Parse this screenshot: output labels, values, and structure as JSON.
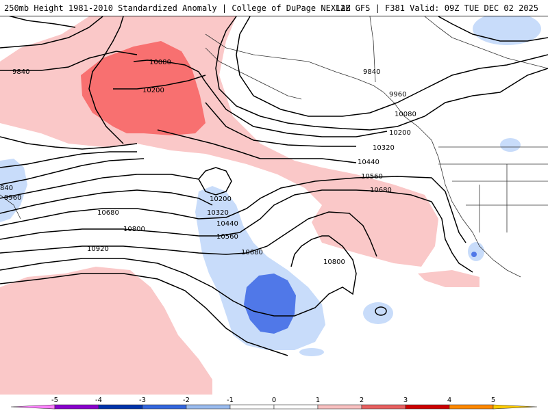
{
  "header": {
    "left_title": "250mb Height 1981-2010 Standardized Anomaly | College of DuPage NEXLAB",
    "right_title": "12Z GFS | F381 Valid: 09Z TUE DEC 02 2025"
  },
  "map": {
    "contour_labels": [
      {
        "id": "lbl-9840-west",
        "text": "9840"
      },
      {
        "id": "lbl-10080-nw",
        "text": "10080"
      },
      {
        "id": "lbl-10200-nw",
        "text": "10200"
      },
      {
        "id": "lbl-9840-east",
        "text": "9840"
      },
      {
        "id": "lbl-9960-east",
        "text": "9960"
      },
      {
        "id": "lbl-10080-east",
        "text": "10080"
      },
      {
        "id": "lbl-10200-east",
        "text": "10200"
      },
      {
        "id": "lbl-10320-east",
        "text": "10320"
      },
      {
        "id": "lbl-10440-east",
        "text": "10440"
      },
      {
        "id": "lbl-10560-east",
        "text": "10560"
      },
      {
        "id": "lbl-10680-east",
        "text": "10680"
      },
      {
        "id": "lbl-840-west",
        "text": "840"
      },
      {
        "id": "lbl-9960-west",
        "text": "9960"
      },
      {
        "id": "lbl-10200-low",
        "text": "10200"
      },
      {
        "id": "lbl-10320-low",
        "text": "10320"
      },
      {
        "id": "lbl-10440-low",
        "text": "10440"
      },
      {
        "id": "lbl-10560-low",
        "text": "10560"
      },
      {
        "id": "lbl-10680-low",
        "text": "10680"
      },
      {
        "id": "lbl-10680-west",
        "text": "10680"
      },
      {
        "id": "lbl-10800-west",
        "text": "10800"
      },
      {
        "id": "lbl-10920-west",
        "text": "10920"
      },
      {
        "id": "lbl-10800-mid",
        "text": "10800"
      }
    ],
    "colors": {
      "light_red": "#fac8c8",
      "medium_red": "#f87070",
      "light_blue": "#c8dcfa",
      "medium_blue": "#5078e8",
      "contour": "#000000"
    }
  },
  "colorbar": {
    "ticks": [
      "-5",
      "-4",
      "-3",
      "-2",
      "-1",
      "0",
      "1",
      "2",
      "3",
      "4",
      "5"
    ],
    "colors": [
      "#ff80ff",
      "#8800cc",
      "#0033aa",
      "#3366dd",
      "#99bbee",
      "#ffffff",
      "#ffffff",
      "#f8c0c0",
      "#e86060",
      "#cc0000",
      "#ff8800",
      "#ffcc00"
    ]
  }
}
